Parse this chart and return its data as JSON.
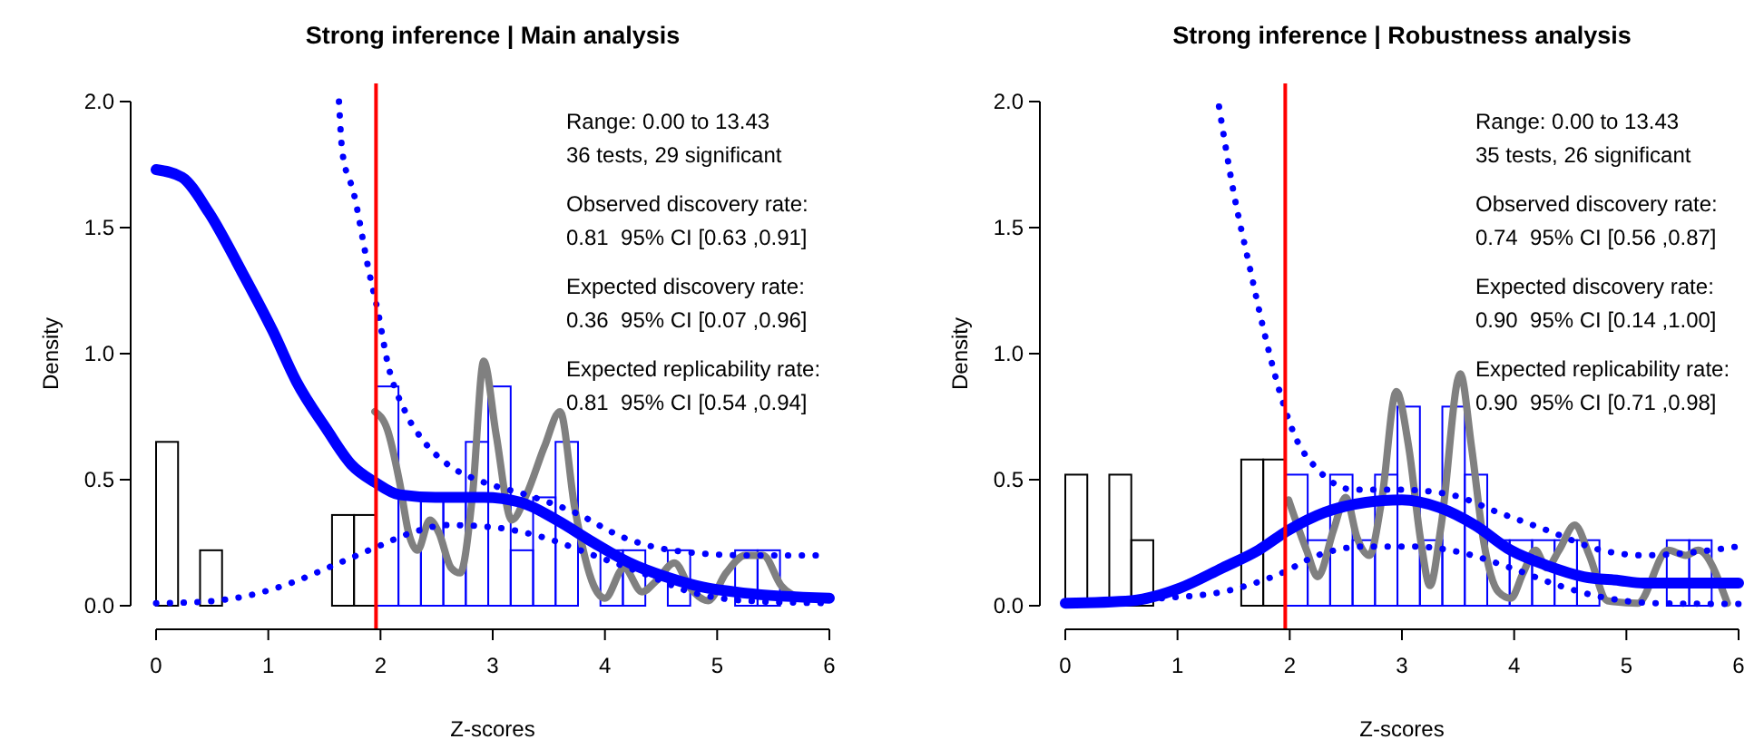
{
  "chart_data": [
    {
      "type": "histogram",
      "title": "Strong inference | Main analysis",
      "xlabel": "Z-scores",
      "ylabel": "Density",
      "xlim": [
        0,
        6
      ],
      "ylim": [
        0,
        2
      ],
      "xticks": [
        0,
        1,
        2,
        3,
        4,
        5,
        6
      ],
      "yticks": [
        {
          "value": 0,
          "label": "0.0"
        },
        {
          "value": 0.5,
          "label": "0.5"
        },
        {
          "value": 1,
          "label": "1.0"
        },
        {
          "value": 1.5,
          "label": "1.5"
        },
        {
          "value": 2,
          "label": "2.0"
        }
      ],
      "series": [
        {
          "type": "histogram",
          "color": "#000000",
          "bins": [
            0,
            0.196,
            0.392,
            0.588,
            0.784,
            0.98,
            1.176,
            1.372,
            1.568,
            1.764,
            1.96
          ],
          "values": [
            0.65,
            0,
            0.22,
            0,
            0,
            0,
            0,
            0,
            0.36,
            0.36
          ]
        },
        {
          "type": "histogram",
          "color": "#0000ff",
          "bins": [
            1.96,
            2.16,
            2.36,
            2.56,
            2.76,
            2.96,
            3.16,
            3.36,
            3.56,
            3.76,
            3.96,
            4.16,
            4.36,
            4.56,
            4.76,
            4.96,
            5.16,
            5.36,
            5.56
          ],
          "values": [
            0.87,
            0.43,
            0.43,
            0.43,
            0.65,
            0.87,
            0.22,
            0.43,
            0.65,
            0,
            0.22,
            0.22,
            0,
            0.22,
            0,
            0,
            0.22,
            0.22
          ]
        },
        {
          "type": "line",
          "color": "#808080",
          "line_style": "solid",
          "x": [
            1.95,
            2.06,
            2.17,
            2.25,
            2.33,
            2.44,
            2.52,
            2.63,
            2.71,
            2.82,
            2.92,
            3.03,
            3.17,
            3.3,
            3.46,
            3.6,
            3.73,
            3.9,
            4.0,
            4.17,
            4.33,
            4.46,
            4.62,
            4.76,
            4.92,
            5.08,
            5.25,
            5.41,
            5.57,
            5.75
          ],
          "values": [
            0.77,
            0.7,
            0.49,
            0.29,
            0.22,
            0.34,
            0.29,
            0.15,
            0.13,
            0.44,
            0.97,
            0.68,
            0.34,
            0.44,
            0.63,
            0.77,
            0.39,
            0.08,
            0.03,
            0.15,
            0.055,
            0.1,
            0.17,
            0.07,
            0.02,
            0.13,
            0.2,
            0.2,
            0.08,
            0.03
          ]
        },
        {
          "type": "line",
          "color": "#0000ff",
          "line_style": "dotted",
          "x": [
            1.63,
            1.66,
            1.76,
            1.9,
            1.98,
            2.06,
            2.22,
            2.39,
            2.6,
            2.92,
            3.3,
            3.73,
            4.17,
            4.6,
            5.25,
            6.0
          ],
          "values": [
            2.0,
            1.8,
            1.64,
            1.32,
            1.16,
            0.97,
            0.77,
            0.65,
            0.56,
            0.49,
            0.44,
            0.37,
            0.27,
            0.22,
            0.2,
            0.2
          ]
        },
        {
          "type": "line",
          "color": "#0000ff",
          "line_style": "dotted",
          "x": [
            0,
            0.39,
            0.82,
            1.2,
            1.58,
            1.95,
            2.28,
            2.6,
            3.03,
            3.46,
            3.9,
            4.33,
            4.76,
            5.25,
            6.0
          ],
          "values": [
            0.01,
            0.015,
            0.04,
            0.09,
            0.16,
            0.23,
            0.29,
            0.32,
            0.31,
            0.27,
            0.2,
            0.13,
            0.055,
            0.02,
            0.01
          ]
        },
        {
          "type": "line",
          "color": "#0000ff",
          "line_style": "solid",
          "x": [
            0,
            0.23,
            0.47,
            0.77,
            1.04,
            1.25,
            1.52,
            1.74,
            1.95,
            2.17,
            2.49,
            2.92,
            3.25,
            3.57,
            3.9,
            4.22,
            4.54,
            4.87,
            5.25,
            6.0
          ],
          "values": [
            1.73,
            1.7,
            1.56,
            1.32,
            1.09,
            0.89,
            0.7,
            0.56,
            0.49,
            0.44,
            0.43,
            0.43,
            0.41,
            0.34,
            0.25,
            0.17,
            0.115,
            0.074,
            0.05,
            0.03
          ]
        }
      ],
      "ref_lines": [
        {
          "axis": "x",
          "value": 1.96,
          "color": "#ff0000"
        }
      ],
      "annotations": [
        "Range: 0.00 to 13.43",
        "36 tests, 29 significant",
        "Observed discovery rate:",
        "0.81  95% CI [0.63 ,0.91]",
        "Expected discovery rate:",
        "0.36  95% CI [0.07 ,0.96]",
        "Expected replicability rate:",
        "0.81  95% CI [0.54 ,0.94]"
      ]
    },
    {
      "type": "histogram",
      "title": "Strong inference | Robustness analysis",
      "xlabel": "Z-scores",
      "ylabel": "Density",
      "xlim": [
        0,
        6
      ],
      "ylim": [
        0,
        2
      ],
      "xticks": [
        0,
        1,
        2,
        3,
        4,
        5,
        6
      ],
      "yticks": [
        {
          "value": 0,
          "label": "0.0"
        },
        {
          "value": 0.5,
          "label": "0.5"
        },
        {
          "value": 1,
          "label": "1.0"
        },
        {
          "value": 1.5,
          "label": "1.5"
        },
        {
          "value": 2,
          "label": "2.0"
        }
      ],
      "series": [
        {
          "type": "histogram",
          "color": "#000000",
          "bins": [
            0,
            0.196,
            0.392,
            0.588,
            0.784,
            0.98,
            1.176,
            1.372,
            1.568,
            1.764,
            1.96
          ],
          "values": [
            0.52,
            0,
            0.52,
            0.26,
            0,
            0,
            0,
            0,
            0.58,
            0.58
          ]
        },
        {
          "type": "histogram",
          "color": "#0000ff",
          "bins": [
            1.96,
            2.16,
            2.36,
            2.56,
            2.76,
            2.96,
            3.16,
            3.36,
            3.56,
            3.76,
            3.96,
            4.16,
            4.36,
            4.56,
            4.76,
            4.96,
            5.16,
            5.36,
            5.56,
            5.76
          ],
          "values": [
            0.52,
            0.26,
            0.52,
            0.26,
            0.52,
            0.79,
            0.26,
            0.79,
            0.52,
            0.26,
            0.26,
            0.26,
            0.26,
            0.26,
            0,
            0,
            0,
            0.26,
            0.26
          ]
        },
        {
          "type": "line",
          "color": "#808080",
          "line_style": "solid",
          "x": [
            1.99,
            2.15,
            2.25,
            2.39,
            2.5,
            2.6,
            2.71,
            2.82,
            2.95,
            3.06,
            3.17,
            3.25,
            3.35,
            3.52,
            3.62,
            3.73,
            3.86,
            3.97,
            4.08,
            4.19,
            4.29,
            4.4,
            4.54,
            4.67,
            4.83,
            5.1,
            5.37,
            5.53,
            5.64,
            5.9
          ],
          "values": [
            0.42,
            0.22,
            0.115,
            0.3,
            0.43,
            0.27,
            0.2,
            0.42,
            0.85,
            0.63,
            0.25,
            0.08,
            0.32,
            0.92,
            0.63,
            0.25,
            0.055,
            0.03,
            0.13,
            0.22,
            0.15,
            0.22,
            0.32,
            0.2,
            0.02,
            0.01,
            0.22,
            0.2,
            0.22,
            0.01
          ]
        },
        {
          "type": "line",
          "color": "#0000ff",
          "line_style": "dotted",
          "x": [
            1.37,
            1.5,
            1.64,
            1.77,
            1.93,
            2.04,
            2.25,
            2.58,
            3.0,
            3.44,
            3.86,
            4.29,
            4.78,
            5.15,
            6.0
          ],
          "values": [
            1.98,
            1.64,
            1.35,
            1.09,
            0.82,
            0.68,
            0.54,
            0.46,
            0.46,
            0.44,
            0.37,
            0.3,
            0.22,
            0.2,
            0.235
          ]
        },
        {
          "type": "line",
          "color": "#0000ff",
          "line_style": "dotted",
          "x": [
            0,
            0.86,
            1.4,
            1.93,
            2.25,
            2.68,
            3.11,
            3.54,
            3.97,
            4.4,
            4.83,
            5.26,
            6.0
          ],
          "values": [
            0.007,
            0.03,
            0.055,
            0.13,
            0.2,
            0.235,
            0.235,
            0.21,
            0.15,
            0.08,
            0.03,
            0.01,
            0.007
          ]
        },
        {
          "type": "line",
          "color": "#0000ff",
          "line_style": "solid",
          "x": [
            0,
            0.59,
            1.02,
            1.4,
            1.72,
            1.99,
            2.31,
            2.68,
            3.0,
            3.33,
            3.65,
            3.97,
            4.29,
            4.62,
            4.94,
            5.15,
            6.0
          ],
          "values": [
            0.01,
            0.02,
            0.07,
            0.15,
            0.22,
            0.3,
            0.37,
            0.41,
            0.42,
            0.39,
            0.32,
            0.22,
            0.16,
            0.115,
            0.1,
            0.09,
            0.09
          ]
        }
      ],
      "ref_lines": [
        {
          "axis": "x",
          "value": 1.96,
          "color": "#ff0000"
        }
      ],
      "annotations": [
        "Range: 0.00 to 13.43",
        "35 tests, 26 significant",
        "Observed discovery rate:",
        "0.74  95% CI [0.56 ,0.87]",
        "Expected discovery rate:",
        "0.90  95% CI [0.14 ,1.00]",
        "Expected replicability rate:",
        "0.90  95% CI [0.71 ,0.98]"
      ]
    }
  ]
}
